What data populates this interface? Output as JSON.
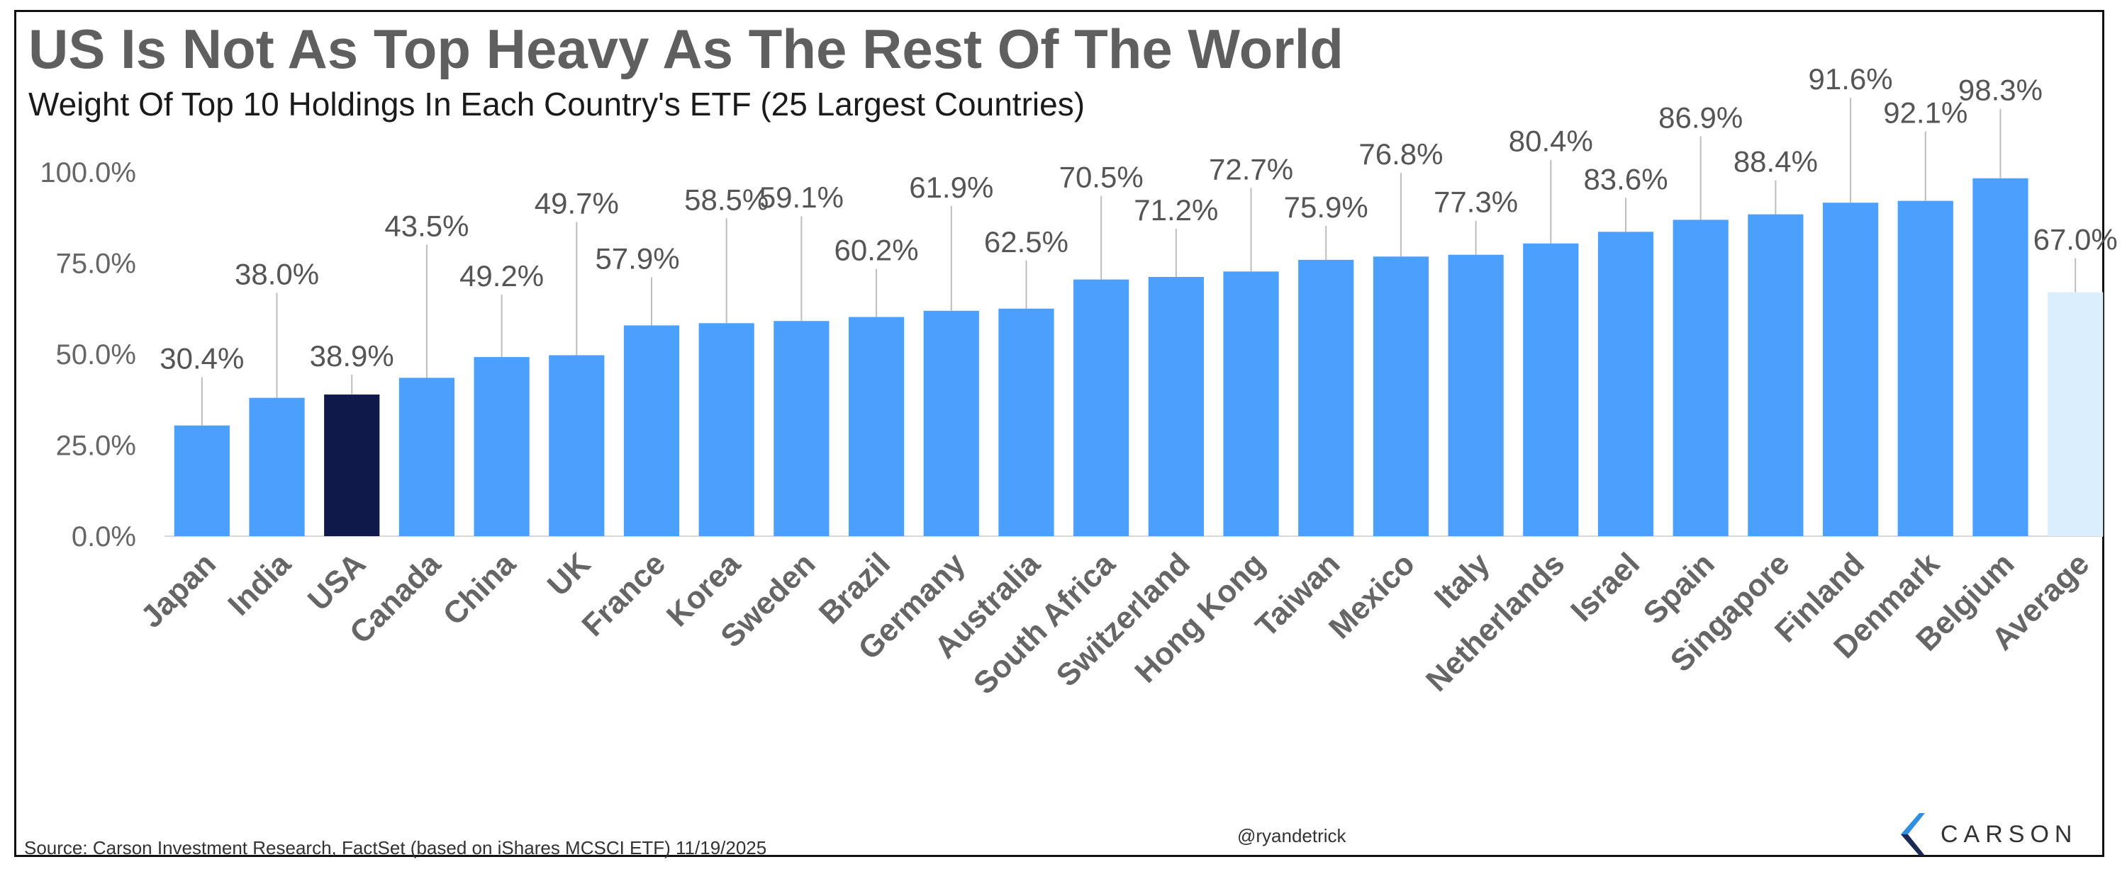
{
  "colors": {
    "bar": "#4aa0fc",
    "highlight": "#101a4a",
    "average": "#dbeefd",
    "axis_text": "#666666",
    "label_text": "#555555",
    "leader": "#bdbdbd",
    "logo_accent": "#2f8fe0",
    "logo_dark": "#1b2a55"
  },
  "chart_data": {
    "type": "bar",
    "title": "US Is Not As Top Heavy As The Rest Of The World",
    "subtitle": "Weight Of Top 10 Holdings In Each Country's ETF (25 Largest Countries)",
    "categories": [
      "Japan",
      "India",
      "USA",
      "Canada",
      "China",
      "UK",
      "France",
      "Korea",
      "Sweden",
      "Brazil",
      "Germany",
      "Australia",
      "South Africa",
      "Switzerland",
      "Hong Kong",
      "Taiwan",
      "Mexico",
      "Italy",
      "Netherlands",
      "Israel",
      "Spain",
      "Singapore",
      "Finland",
      "Denmark",
      "Belgium",
      "Average"
    ],
    "values": [
      30.4,
      38.0,
      38.9,
      43.5,
      49.2,
      49.7,
      57.9,
      58.5,
      59.1,
      60.2,
      61.9,
      62.5,
      70.5,
      71.2,
      72.7,
      75.9,
      76.8,
      77.3,
      80.4,
      83.6,
      86.9,
      88.4,
      91.6,
      92.1,
      98.3,
      67.0
    ],
    "value_labels": [
      "30.4%",
      "38.0%",
      "38.9%",
      "43.5%",
      "49.2%",
      "49.7%",
      "57.9%",
      "58.5%",
      "59.1%",
      "60.2%",
      "61.9%",
      "62.5%",
      "70.5%",
      "71.2%",
      "72.7%",
      "75.9%",
      "76.8%",
      "77.3%",
      "80.4%",
      "83.6%",
      "86.9%",
      "88.4%",
      "91.6%",
      "92.1%",
      "98.3%",
      "67.0%"
    ],
    "highlight": "USA",
    "average_category": "Average",
    "ylim": [
      0,
      100
    ],
    "yticks": [
      0,
      25,
      50,
      75,
      100
    ],
    "ytick_labels": [
      "0.0%",
      "25.0%",
      "50.0%",
      "75.0%",
      "100.0%"
    ],
    "xlabel": "",
    "ylabel": "",
    "grid": false,
    "legend": "none"
  },
  "footer": {
    "source": "Source: Carson Investment Research, FactSet (based on iShares MCSCI ETF) 11/19/2025",
    "handle": "@ryandetrick",
    "logo_text": "CARSON"
  }
}
